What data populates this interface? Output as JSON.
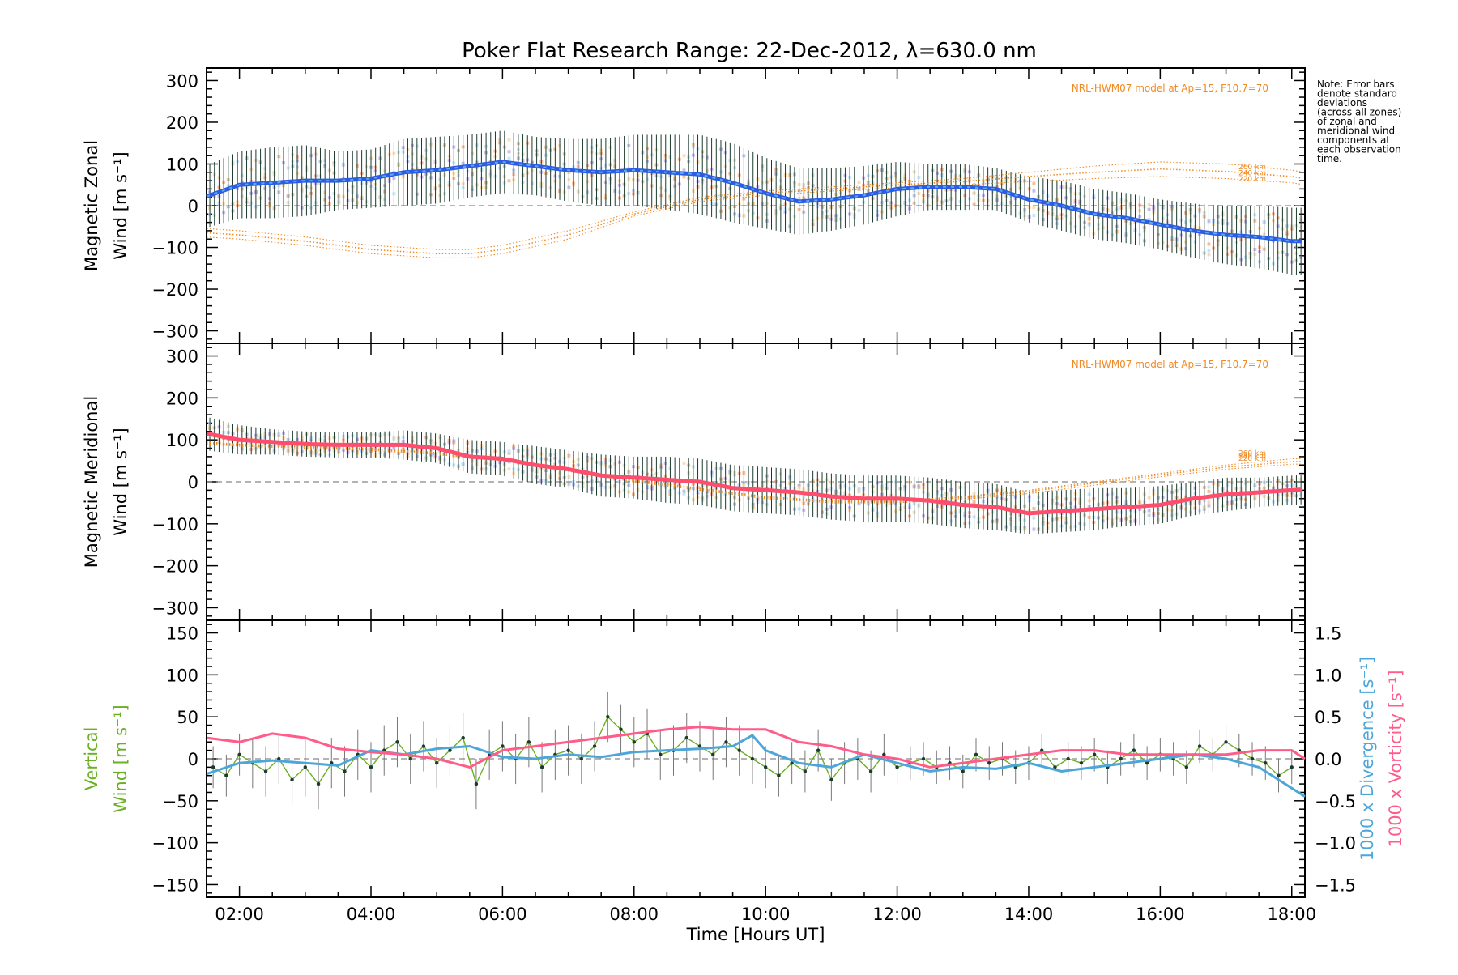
{
  "title": "Poker Flat Research Range: 22-Dec-2012, λ=630.0 nm",
  "note": "Note: Error bars denote standard deviations (across all zones) of zonal and meridional wind components at each observation time.",
  "note_lines": [
    "Note: Error bars",
    "denote standard",
    "deviations",
    "(across all zones)",
    "of zonal and",
    "meridional wind",
    "components at",
    "each observation",
    "time."
  ],
  "xlabel": "Time [Hours UT]",
  "colors": {
    "zonal": "#2b5ce6",
    "zonal_light": "#5fa8e8",
    "meridional": "#ff4d6d",
    "model": "#f08a24",
    "vertical": "#6ab023",
    "divergence": "#4da6d9",
    "vorticity": "#ff5c8a",
    "errorbar": "#1b3b2c"
  },
  "chart_data": [
    {
      "type": "line",
      "panel": "zonal",
      "ylabel_line1": "Magnetic Zonal",
      "ylabel_line2": "Wind [m s⁻¹]",
      "model_label": "NRL-HWM07 model at Ap=15, F10.7=70",
      "xlim": [
        1.5,
        18.2
      ],
      "ylim": [
        -330,
        330
      ],
      "x_ticks": [
        "02:00",
        "04:00",
        "06:00",
        "08:00",
        "10:00",
        "12:00",
        "14:00",
        "16:00",
        "18:00"
      ],
      "x_tick_values": [
        2,
        4,
        6,
        8,
        10,
        12,
        14,
        16,
        18
      ],
      "y_ticks": [
        300,
        200,
        100,
        0,
        -100,
        -200,
        -300
      ],
      "zero_line": true,
      "series": [
        {
          "x": [
            1.5,
            2,
            2.5,
            3,
            3.5,
            4,
            4.5,
            5,
            5.5,
            6,
            6.5,
            7,
            7.5,
            8,
            8.5,
            9,
            9.5,
            10,
            10.5,
            11,
            11.5,
            12,
            12.5,
            13,
            13.5,
            14,
            14.5,
            15,
            15.5,
            16,
            16.5,
            17,
            17.5,
            18,
            18.2
          ],
          "y": [
            22,
            50,
            55,
            60,
            60,
            65,
            80,
            85,
            95,
            105,
            95,
            85,
            80,
            85,
            80,
            75,
            55,
            30,
            10,
            15,
            25,
            40,
            45,
            45,
            40,
            15,
            0,
            -20,
            -30,
            -45,
            -60,
            -70,
            -75,
            -85,
            -85
          ],
          "errors": [
            75,
            80,
            85,
            85,
            70,
            70,
            80,
            80,
            75,
            75,
            70,
            75,
            80,
            85,
            90,
            95,
            95,
            85,
            80,
            75,
            70,
            65,
            55,
            55,
            50,
            55,
            60,
            60,
            60,
            60,
            65,
            70,
            75,
            80,
            80
          ]
        }
      ],
      "model_curves": [
        {
          "name": "260 km",
          "x": [
            1.5,
            2,
            3,
            4,
            5,
            5.5,
            6,
            7,
            8,
            9,
            10,
            11,
            12,
            13,
            14,
            15,
            16,
            17,
            18,
            18.2
          ],
          "y": [
            -55,
            -60,
            -75,
            -95,
            -105,
            -105,
            -95,
            -60,
            -15,
            20,
            35,
            45,
            55,
            65,
            80,
            95,
            105,
            100,
            85,
            80
          ]
        },
        {
          "name": "240 km",
          "x": [
            1.5,
            2,
            3,
            4,
            5,
            5.5,
            6,
            7,
            8,
            9,
            10,
            11,
            12,
            13,
            14,
            15,
            16,
            17,
            18,
            18.2
          ],
          "y": [
            -65,
            -70,
            -85,
            -105,
            -115,
            -115,
            -105,
            -70,
            -20,
            15,
            30,
            40,
            50,
            58,
            70,
            80,
            88,
            82,
            70,
            65
          ]
        },
        {
          "name": "220 km",
          "x": [
            1.5,
            2,
            3,
            4,
            5,
            5.5,
            6,
            7,
            8,
            9,
            10,
            11,
            12,
            13,
            14,
            15,
            16,
            17,
            18,
            18.2
          ],
          "y": [
            -75,
            -80,
            -95,
            -115,
            -125,
            -125,
            -115,
            -80,
            -25,
            10,
            25,
            35,
            43,
            50,
            58,
            65,
            70,
            65,
            55,
            50
          ]
        }
      ]
    },
    {
      "type": "line",
      "panel": "meridional",
      "ylabel_line1": "Magnetic Meridional",
      "ylabel_line2": "Wind [m s⁻¹]",
      "model_label": "NRL-HWM07 model at Ap=15, F10.7=70",
      "xlim": [
        1.5,
        18.2
      ],
      "ylim": [
        -330,
        330
      ],
      "y_ticks": [
        300,
        200,
        100,
        0,
        -100,
        -200,
        -300
      ],
      "zero_line": true,
      "series": [
        {
          "x": [
            1.5,
            2,
            2.5,
            3,
            3.5,
            4,
            4.5,
            5,
            5.5,
            6,
            6.5,
            7,
            7.5,
            8,
            8.5,
            9,
            9.5,
            10,
            10.5,
            11,
            11.5,
            12,
            12.5,
            13,
            13.5,
            14,
            14.5,
            15,
            15.5,
            16,
            16.5,
            17,
            17.5,
            18,
            18.2
          ],
          "y": [
            115,
            100,
            95,
            90,
            88,
            88,
            88,
            80,
            60,
            55,
            40,
            30,
            15,
            10,
            5,
            0,
            -15,
            -20,
            -25,
            -35,
            -40,
            -40,
            -45,
            -55,
            -60,
            -75,
            -70,
            -65,
            -60,
            -55,
            -40,
            -30,
            -25,
            -20,
            -18
          ],
          "errors": [
            40,
            35,
            30,
            30,
            30,
            30,
            35,
            35,
            40,
            40,
            45,
            45,
            50,
            50,
            55,
            55,
            55,
            55,
            55,
            55,
            55,
            55,
            55,
            55,
            55,
            50,
            50,
            50,
            45,
            45,
            40,
            40,
            35,
            35,
            35
          ]
        }
      ],
      "model_curves": [
        {
          "name": "260 km",
          "x": [
            1.5,
            2,
            3,
            4,
            5,
            6,
            7,
            8,
            9,
            10,
            11,
            12,
            13,
            14,
            15,
            16,
            17,
            18,
            18.2
          ],
          "y": [
            95,
            90,
            85,
            80,
            70,
            55,
            30,
            5,
            -15,
            -35,
            -45,
            -45,
            -35,
            -20,
            0,
            20,
            40,
            55,
            55
          ]
        },
        {
          "name": "240 km",
          "x": [
            1.5,
            2,
            3,
            4,
            5,
            6,
            7,
            8,
            9,
            10,
            11,
            12,
            13,
            14,
            15,
            16,
            17,
            18,
            18.2
          ],
          "y": [
            93,
            88,
            83,
            78,
            68,
            52,
            28,
            3,
            -17,
            -37,
            -47,
            -47,
            -38,
            -23,
            -3,
            17,
            35,
            48,
            48
          ]
        },
        {
          "name": "220 km",
          "x": [
            1.5,
            2,
            3,
            4,
            5,
            6,
            7,
            8,
            9,
            10,
            11,
            12,
            13,
            14,
            15,
            16,
            17,
            18,
            18.2
          ],
          "y": [
            90,
            85,
            80,
            75,
            65,
            50,
            25,
            0,
            -20,
            -40,
            -50,
            -50,
            -42,
            -28,
            -8,
            12,
            30,
            42,
            42
          ]
        }
      ]
    },
    {
      "type": "line",
      "panel": "vertical",
      "ylabel_line1": "Vertical",
      "ylabel_line2": "Wind [m s⁻¹]",
      "y2label_div": "1000 x Divergence [s⁻¹]",
      "y2label_vort": "1000 x Vorticity [s⁻¹]",
      "xlim": [
        1.5,
        18.2
      ],
      "ylim": [
        -165,
        165
      ],
      "y2lim": [
        -1.65,
        1.65
      ],
      "y_ticks": [
        150,
        100,
        50,
        0,
        -50,
        -100,
        -150
      ],
      "y2_ticks": [
        "1.5",
        "1.0",
        "0.5",
        "0.0",
        "−0.5",
        "−1.0",
        "−1.5"
      ],
      "y2_tick_values": [
        1.5,
        1.0,
        0.5,
        0.0,
        -0.5,
        -1.0,
        -1.5
      ],
      "zero_line": true,
      "series": [
        {
          "name": "vertical",
          "x": [
            1.6,
            1.8,
            2,
            2.2,
            2.4,
            2.6,
            2.8,
            3,
            3.2,
            3.4,
            3.6,
            3.8,
            4,
            4.2,
            4.4,
            4.6,
            4.8,
            5,
            5.2,
            5.4,
            5.6,
            5.8,
            6,
            6.2,
            6.4,
            6.6,
            6.8,
            7,
            7.2,
            7.4,
            7.6,
            7.8,
            8,
            8.2,
            8.4,
            8.6,
            8.8,
            9,
            9.2,
            9.4,
            9.6,
            9.8,
            10,
            10.2,
            10.4,
            10.6,
            10.8,
            11,
            11.2,
            11.4,
            11.6,
            11.8,
            12,
            12.2,
            12.4,
            12.6,
            12.8,
            13,
            13.2,
            13.4,
            13.6,
            13.8,
            14,
            14.2,
            14.4,
            14.6,
            14.8,
            15,
            15.2,
            15.4,
            15.6,
            15.8,
            16,
            16.2,
            16.4,
            16.6,
            16.8,
            17,
            17.2,
            17.4,
            17.6,
            17.8,
            18
          ],
          "y": [
            -10,
            -20,
            5,
            -5,
            -15,
            0,
            -25,
            -10,
            -30,
            -5,
            -15,
            5,
            -10,
            10,
            20,
            0,
            15,
            -5,
            10,
            25,
            -30,
            5,
            15,
            0,
            20,
            -10,
            5,
            10,
            0,
            15,
            50,
            35,
            20,
            30,
            5,
            10,
            25,
            15,
            5,
            20,
            10,
            0,
            -10,
            -20,
            -5,
            -15,
            10,
            -25,
            -5,
            0,
            -15,
            5,
            -10,
            -5,
            0,
            -10,
            -5,
            -15,
            5,
            -5,
            0,
            -10,
            -5,
            10,
            -10,
            0,
            -5,
            5,
            -10,
            0,
            10,
            -5,
            5,
            0,
            -10,
            15,
            5,
            20,
            10,
            0,
            -5,
            -20,
            -10
          ],
          "errors": [
            25,
            25,
            25,
            30,
            30,
            30,
            30,
            35,
            30,
            30,
            30,
            30,
            30,
            30,
            30,
            30,
            30,
            30,
            30,
            30,
            30,
            30,
            30,
            30,
            30,
            30,
            30,
            30,
            30,
            30,
            30,
            30,
            30,
            30,
            30,
            30,
            30,
            30,
            30,
            30,
            30,
            30,
            25,
            25,
            25,
            25,
            25,
            25,
            25,
            25,
            25,
            25,
            20,
            20,
            20,
            20,
            20,
            20,
            20,
            20,
            20,
            20,
            20,
            20,
            20,
            20,
            20,
            20,
            20,
            20,
            20,
            20,
            20,
            20,
            20,
            20,
            20,
            20,
            20,
            20,
            20,
            20,
            20
          ]
        },
        {
          "name": "divergence",
          "x": [
            1.5,
            2,
            2.5,
            3,
            3.5,
            4,
            4.5,
            5,
            5.5,
            6,
            6.5,
            7,
            7.5,
            8,
            8.5,
            9,
            9.5,
            9.8,
            10,
            10.5,
            11,
            11.5,
            12,
            12.5,
            13,
            13.5,
            14,
            14.5,
            15,
            15.5,
            16,
            16.5,
            17,
            17.5,
            18,
            18.2
          ],
          "y": [
            -0.18,
            -0.05,
            -0.02,
            -0.05,
            -0.08,
            0.1,
            0.05,
            0.12,
            0.15,
            0.02,
            0.0,
            0.05,
            0.02,
            0.08,
            0.1,
            0.12,
            0.15,
            0.28,
            0.1,
            -0.05,
            -0.1,
            0.05,
            -0.05,
            -0.15,
            -0.1,
            -0.12,
            -0.05,
            -0.15,
            -0.1,
            -0.05,
            0.0,
            0.05,
            0.0,
            -0.1,
            -0.35,
            -0.45
          ]
        },
        {
          "name": "vorticity",
          "x": [
            1.5,
            2,
            2.5,
            3,
            3.5,
            4,
            4.5,
            5,
            5.5,
            6,
            6.5,
            7,
            7.5,
            8,
            8.5,
            9,
            9.5,
            10,
            10.5,
            11,
            11.5,
            12,
            12.5,
            13,
            13.5,
            14,
            14.5,
            15,
            15.5,
            16,
            16.5,
            17,
            17.5,
            18,
            18.2
          ],
          "y": [
            0.25,
            0.2,
            0.3,
            0.25,
            0.12,
            0.08,
            0.05,
            0.0,
            -0.1,
            0.1,
            0.15,
            0.2,
            0.25,
            0.3,
            0.35,
            0.38,
            0.35,
            0.35,
            0.2,
            0.15,
            0.05,
            0.0,
            -0.1,
            -0.05,
            0.0,
            0.05,
            0.1,
            0.1,
            0.05,
            0.05,
            0.05,
            0.05,
            0.1,
            0.1,
            0.0
          ]
        }
      ]
    }
  ]
}
